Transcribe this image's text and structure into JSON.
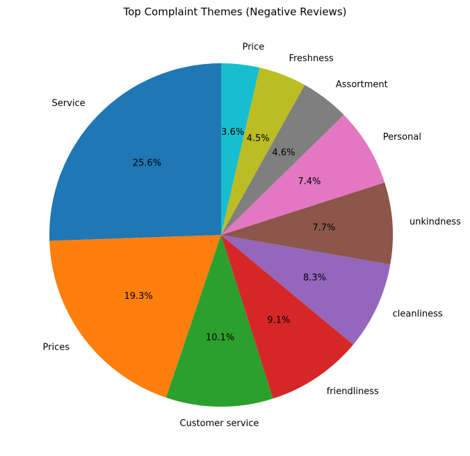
{
  "chart_data": {
    "type": "pie",
    "title": "Top Complaint Themes (Negative Reviews)",
    "categories": [
      "Service",
      "Prices",
      "Customer service",
      "friendliness",
      "cleanliness",
      "unkindness",
      "Personal",
      "Assortment",
      "Freshness",
      "Price"
    ],
    "values": [
      25.6,
      19.3,
      10.1,
      9.1,
      8.3,
      7.7,
      7.4,
      4.6,
      4.5,
      3.6
    ],
    "percent_labels": [
      "25.6%",
      "19.3%",
      "10.1%",
      "9.1%",
      "8.3%",
      "7.7%",
      "7.4%",
      "4.6%",
      "4.5%",
      "3.6%"
    ],
    "colors": [
      "#1f77b4",
      "#ff7f0e",
      "#2ca02c",
      "#d62728",
      "#9467bd",
      "#8c564b",
      "#e377c2",
      "#7f7f7f",
      "#bcbd22",
      "#17becf"
    ],
    "start_angle": 90,
    "direction": "counterclockwise",
    "legend": "none"
  }
}
